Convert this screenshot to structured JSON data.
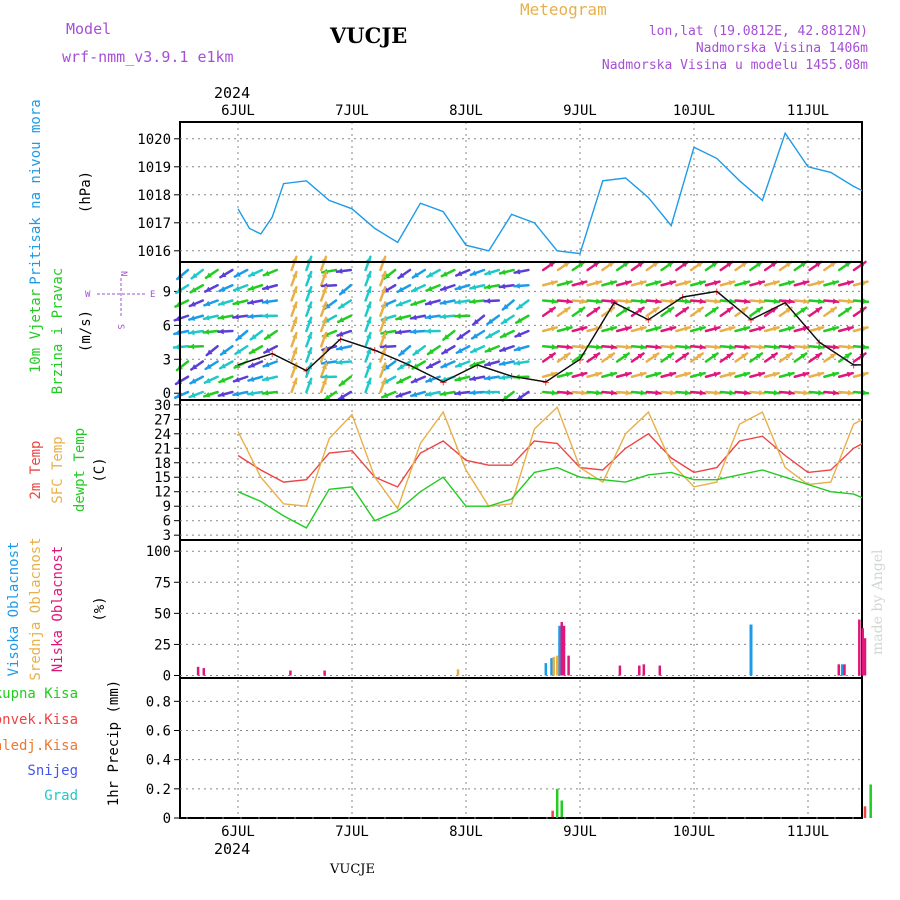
{
  "header": {
    "model_label": "Model",
    "model_name": "wrf-nmm_v3.9.1  e1km",
    "station": "VUCJE",
    "title": "Meteogram",
    "coords": "lon,lat (19.0812E, 42.8812N)",
    "altitude": "Nadmorska Visina 1406m",
    "model_altitude": "Nadmorska Visina u modelu 1455.08m",
    "year_top": "2024",
    "year_bottom": "2024",
    "footer_station": "VUCJE",
    "watermark": "made by Angel"
  },
  "colors": {
    "purple": "#a64fd6",
    "orange": "#e8b04a",
    "blue": "#1e9be8",
    "green": "#22cc22",
    "red": "#ee4444",
    "magenta": "#e0177a",
    "cyan": "#20c8c8",
    "grid": "#888888"
  },
  "days": [
    "6JUL",
    "7JUL",
    "8JUL",
    "9JUL",
    "10JUL",
    "11JUL"
  ],
  "chart_data": [
    {
      "type": "line",
      "name": "pressure",
      "ylabel": [
        "Pritisak na nivou mora",
        "(hPa)"
      ],
      "yticks": [
        1016,
        1017,
        1018,
        1019,
        1020
      ],
      "ylim": [
        1015.6,
        1020.6
      ],
      "grid": true,
      "x": [
        0.0,
        0.1,
        0.2,
        0.3,
        0.4,
        0.6,
        0.8,
        1.0,
        1.2,
        1.4,
        1.6,
        1.8,
        2.0,
        2.2,
        2.4,
        2.6,
        2.8,
        3.0,
        3.2,
        3.4,
        3.6,
        3.8,
        4.0,
        4.2,
        4.4,
        4.6,
        4.8,
        5.0,
        5.2,
        5.4,
        5.6,
        5.8,
        6.0
      ],
      "series": [
        {
          "values": [
            1017.5,
            1016.8,
            1016.6,
            1017.2,
            1018.4,
            1018.5,
            1017.8,
            1017.5,
            1016.8,
            1016.3,
            1017.7,
            1017.4,
            1016.2,
            1016.0,
            1017.3,
            1017.0,
            1016.0,
            1015.9,
            1018.5,
            1018.6,
            1017.9,
            1016.9,
            1019.7,
            1019.3,
            1018.5,
            1017.8,
            1020.2,
            1019.0,
            1018.8,
            1018.3,
            1017.9,
            1017.6,
            1017.5
          ]
        }
      ]
    },
    {
      "type": "line",
      "name": "wind",
      "ylabel": [
        "10m Vjetar",
        "Brzina i Pravac",
        "(m/s)"
      ],
      "compass": {
        "n": "N",
        "w": "W",
        "e": "E",
        "s": "S"
      },
      "yticks": [
        0,
        3,
        6,
        9
      ],
      "ylim": [
        -0.6,
        11.6
      ],
      "grid": true,
      "x": [
        0.0,
        0.3,
        0.6,
        0.9,
        1.2,
        1.5,
        1.8,
        2.1,
        2.4,
        2.7,
        3.0,
        3.3,
        3.6,
        3.9,
        4.2,
        4.5,
        4.8,
        5.1,
        5.4,
        5.7,
        6.0
      ],
      "series": [
        {
          "values": [
            2.5,
            3.5,
            2.0,
            4.8,
            3.8,
            2.5,
            1.0,
            2.5,
            1.5,
            1.0,
            3.0,
            8.0,
            6.5,
            8.5,
            9.0,
            6.5,
            8.0,
            4.5,
            2.5,
            2.5,
            2.5
          ]
        }
      ]
    },
    {
      "type": "line",
      "name": "temperature",
      "ylabel": [
        "2m Temp",
        "SFC Temp",
        "dewpt Temp",
        "(C)"
      ],
      "yticks": [
        3,
        6,
        9,
        12,
        15,
        18,
        21,
        24,
        27,
        30
      ],
      "ylim": [
        2,
        31
      ],
      "grid": true,
      "x": [
        0.0,
        0.2,
        0.4,
        0.6,
        0.8,
        1.0,
        1.2,
        1.4,
        1.6,
        1.8,
        2.0,
        2.2,
        2.4,
        2.6,
        2.8,
        3.0,
        3.2,
        3.4,
        3.6,
        3.8,
        4.0,
        4.2,
        4.4,
        4.6,
        4.8,
        5.0,
        5.2,
        5.4,
        5.6,
        5.8,
        6.0
      ],
      "series": [
        {
          "name": "2m Temp",
          "values": [
            19.5,
            16.5,
            14.0,
            14.5,
            20.0,
            20.5,
            15.0,
            13.0,
            20.0,
            22.5,
            18.5,
            17.5,
            17.5,
            22.5,
            22.0,
            17.0,
            16.5,
            21.0,
            24.0,
            19.0,
            16.0,
            17.0,
            22.5,
            23.5,
            19.5,
            16.0,
            16.5,
            21.0,
            23.5,
            24.0,
            25.0
          ]
        },
        {
          "name": "SFC Temp",
          "values": [
            24.5,
            15.0,
            9.5,
            9.0,
            23.0,
            28.0,
            15.0,
            8.5,
            22.0,
            28.5,
            16.5,
            9.0,
            9.5,
            25.0,
            29.5,
            17.0,
            14.0,
            24.0,
            28.5,
            18.0,
            13.0,
            14.0,
            26.0,
            28.5,
            17.0,
            13.5,
            14.0,
            26.0,
            28.5,
            29.5,
            28.5
          ]
        },
        {
          "name": "dewpt Temp",
          "values": [
            12.0,
            10.0,
            7.0,
            4.5,
            12.5,
            13.0,
            6.0,
            8.0,
            12.0,
            15.0,
            9.0,
            9.0,
            10.5,
            16.0,
            17.0,
            15.0,
            14.5,
            14.0,
            15.5,
            16.0,
            14.5,
            14.5,
            15.5,
            16.5,
            15.0,
            13.5,
            12.0,
            11.5,
            9.5,
            11.5,
            12.5
          ]
        }
      ]
    },
    {
      "type": "bar",
      "name": "clouds",
      "ylabel": [
        "Visoka Oblacnost",
        "Srednja Oblacnost",
        "Niska Oblacnost",
        "(%)"
      ],
      "yticks": [
        0,
        25,
        50,
        75,
        100
      ],
      "ylim": [
        -2,
        109
      ],
      "grid": true,
      "series": [
        {
          "name": "Visoka Oblacnost",
          "bars": [
            [
              2.7,
              10
            ],
            [
              2.75,
              14
            ],
            [
              2.82,
              40
            ],
            [
              4.5,
              41
            ],
            [
              5.3,
              9
            ]
          ]
        },
        {
          "name": "Srednja Oblacnost",
          "bars": [
            [
              1.93,
              5
            ],
            [
              2.77,
              15
            ],
            [
              2.8,
              16
            ],
            [
              5.98,
              7
            ]
          ]
        },
        {
          "name": "Niska Oblacnost",
          "bars": [
            [
              -0.35,
              7
            ],
            [
              -0.3,
              6
            ],
            [
              0.46,
              4
            ],
            [
              0.76,
              4
            ],
            [
              2.84,
              43
            ],
            [
              2.86,
              40
            ],
            [
              2.9,
              16
            ],
            [
              3.35,
              8
            ],
            [
              3.52,
              8
            ],
            [
              3.56,
              9
            ],
            [
              3.7,
              8
            ],
            [
              5.27,
              9
            ],
            [
              5.32,
              9
            ],
            [
              5.45,
              45
            ],
            [
              5.48,
              38
            ],
            [
              5.5,
              30
            ],
            [
              5.96,
              5
            ]
          ]
        }
      ]
    },
    {
      "type": "bar",
      "name": "precip",
      "ylabel": [
        "1hr Precip (mm)"
      ],
      "legend": [
        "Ukupna Kisa",
        "Konvek.Kisa",
        "Zaledj.Kisa",
        "Snijeg",
        "Grad"
      ],
      "yticks": [
        0,
        0.2,
        0.4,
        0.6,
        0.8
      ],
      "ylim": [
        0,
        0.96
      ],
      "grid": true,
      "series": [
        {
          "name": "Ukupna Kisa",
          "bars": [
            [
              2.8,
              0.2
            ],
            [
              2.84,
              0.12
            ],
            [
              5.55,
              0.23
            ]
          ]
        },
        {
          "name": "Konvek.Kisa",
          "bars": [
            [
              2.76,
              0.05
            ],
            [
              5.5,
              0.08
            ]
          ]
        }
      ]
    }
  ]
}
